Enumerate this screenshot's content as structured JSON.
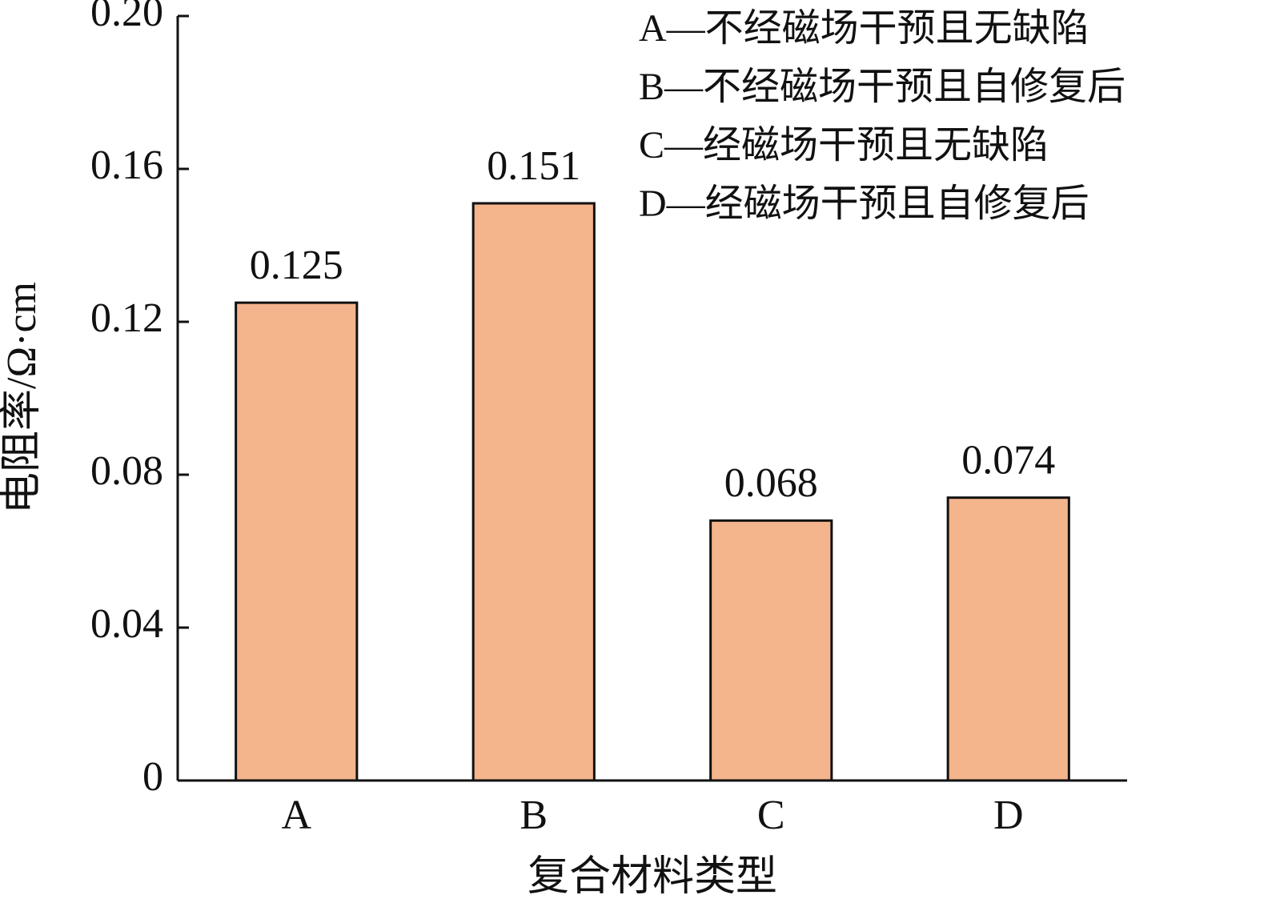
{
  "chart_data": {
    "type": "bar",
    "categories": [
      "A",
      "B",
      "C",
      "D"
    ],
    "values": [
      0.125,
      0.151,
      0.068,
      0.074
    ],
    "color": "#f4b48c",
    "ylim": [
      0,
      0.2
    ],
    "yticks": [
      0,
      0.04,
      0.08,
      0.12,
      0.16,
      {
        "value": 0.2,
        "label": "0.20"
      }
    ],
    "ylabel": "电阻率/Ω·cm",
    "xlabel": "复合材料类型",
    "annotations": [
      "A—不经磁场干预且无缺陷",
      "B—不经磁场干预且自修复后",
      "C—经磁场干预且无缺陷",
      "D—经磁场干预且自修复后"
    ]
  }
}
